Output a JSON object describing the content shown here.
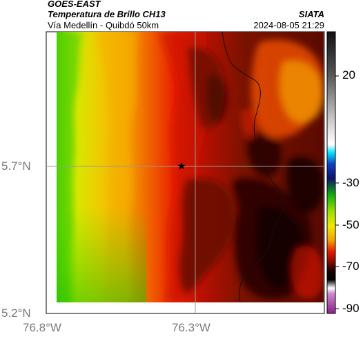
{
  "header": {
    "satellite": "GOES-EAST",
    "product": "Temperatura de Brillo CH13",
    "region": "Vía Medellín - Quibdó 50km",
    "source": "SIATA",
    "timestamp": "2024-08-05 21:29"
  },
  "axes": {
    "lat_ticks": [
      "5.7°N",
      "5.2°N"
    ],
    "lon_ticks": [
      "76.8°W",
      "76.3°W"
    ]
  },
  "colorbar": {
    "tick_labels": [
      "20",
      "-30",
      "-50",
      "-70",
      "-90"
    ]
  },
  "map": {
    "marker": "star",
    "colors": {
      "warm_green": "#3ad100",
      "yellow": "#f0e800",
      "orange": "#f5a000",
      "red": "#e81a00",
      "dark_red": "#7a1200",
      "darkest": "#2a0000"
    }
  }
}
